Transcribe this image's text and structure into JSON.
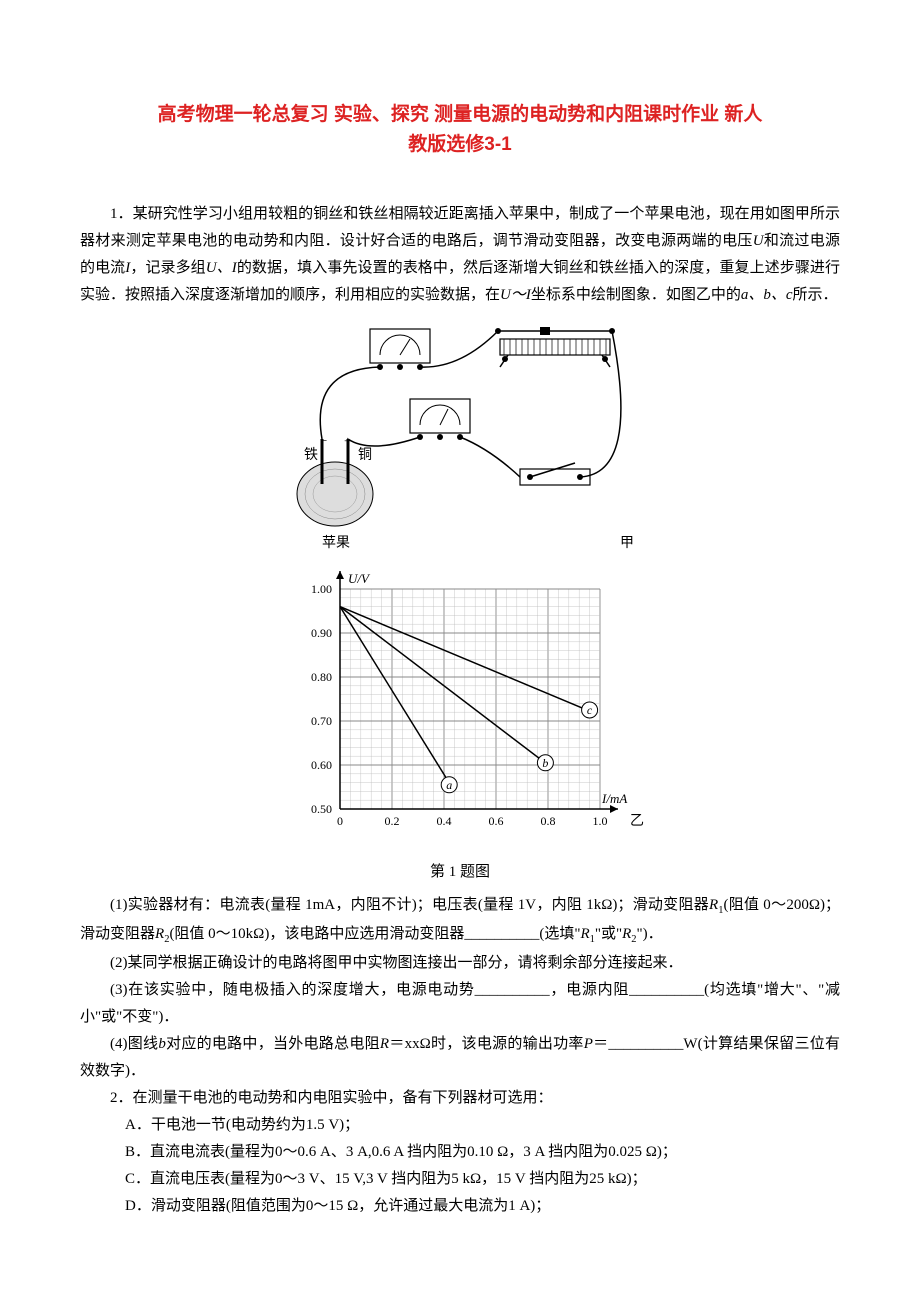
{
  "title_line1": "高考物理一轮总复习 实验、探究 测量电源的电动势和内阻课时作业 新人",
  "title_line2": "教版选修3-1",
  "q1_intro": "1．某研究性学习小组用较粗的铜丝和铁丝相隔较近距离插入苹果中，制成了一个苹果电池，现在用如图甲所示器材来测定苹果电池的电动势和内阻．设计好合适的电路后，调节滑动变阻器，改变电源两端的电压",
  "q1_voltage_sym": "U",
  "q1_and_current": "和流过电源的电流",
  "q1_current_sym": "I",
  "q1_record": "，记录多组",
  "q1_ui": "U、I",
  "q1_after_record": "的数据，填入事先设置的表格中，然后逐渐增大铜丝和铁丝插入的深度，重复上述步骤进行实验．按照插入深度逐渐增加的顺序，利用相应的实验数据，在",
  "q1_ui2": "U～I",
  "q1_coord": "坐标系中绘制图象．如图乙中的",
  "q1_abc": "a、b、c",
  "q1_shown": "所示．",
  "fig1_labels": {
    "iron": "铁",
    "copper": "铜",
    "apple": "苹果",
    "jia": "甲",
    "yi": "乙"
  },
  "chart": {
    "y_label": "U/V",
    "x_label": "I/mA",
    "y_min": 0.5,
    "y_max": 1.0,
    "y_step": 0.1,
    "y_ticks": [
      "0.50",
      "0.60",
      "0.70",
      "0.80",
      "0.90",
      "1.00"
    ],
    "x_ticks": [
      "0",
      "0.2",
      "0.4",
      "0.6",
      "0.8",
      "1.0"
    ],
    "grid_major_color": "#888",
    "grid_minor_color": "#bbb",
    "lines": {
      "a": {
        "x1": 0,
        "y1": 0.96,
        "x2": 0.43,
        "y2": 0.55,
        "label_x": 0.42,
        "label_y": 0.555
      },
      "b": {
        "x1": 0,
        "y1": 0.96,
        "x2": 0.8,
        "y2": 0.6,
        "label_x": 0.79,
        "label_y": 0.605
      },
      "c": {
        "x1": 0,
        "y1": 0.96,
        "x2": 0.97,
        "y2": 0.72,
        "label_x": 0.96,
        "label_y": 0.725
      }
    }
  },
  "fig_caption": "第 1 题图",
  "q1_1_a": "(1)实验器材有：电流表(量程 1mA，内阻不计)；电压表(量程 1V，内阻 1kΩ)；滑动变阻器",
  "q1_1_r1": "R₁(阻值 0～200Ω)；滑动变阻器",
  "q1_1_r2": "R₂(阻值 0～10kΩ)，该电路中应选用滑动变阻器",
  "q1_1_blank": "__________(选填\"",
  "q1_1_r1s": "R₁",
  "q1_1_or": "\"或\"",
  "q1_1_r2s": "R₂",
  "q1_1_end": "\")．",
  "q1_2": "(2)某同学根据正确设计的电路将图甲中实物图连接出一部分，请将剩余部分连接起来．",
  "q1_3_a": "(3)在该实验中，随电极插入的深度增大，电源电动势__________，电源内阻__________(均选填\"增大\"、\"减小\"或\"不变\")．",
  "q1_4_a": "(4)图线",
  "q1_4_b": "b",
  "q1_4_c": "对应的电路中，当外电路总电阻",
  "q1_4_r": "R",
  "q1_4_eq": "＝xxΩ时，该电源的输出功率",
  "q1_4_p": "P",
  "q1_4_end": "＝__________W(计算结果保留三位有效数字)．",
  "q2_intro": "2．在测量干电池的电动势和内电阻实验中，备有下列器材可选用：",
  "q2_a": "A．干电池一节(电动势约为1.5 V)；",
  "q2_b": "B．直流电流表(量程为0～0.6 A、3 A,0.6 A 挡内阻为0.10 Ω，3 A 挡内阻为0.025 Ω)；",
  "q2_c": "C．直流电压表(量程为0～3 V、15 V,3 V 挡内阻为5 kΩ，15 V 挡内阻为25 kΩ)；",
  "q2_d": "D．滑动变阻器(阻值范围为0～15 Ω，允许通过最大电流为1 A)；",
  "plus": "+",
  "minus": "−"
}
